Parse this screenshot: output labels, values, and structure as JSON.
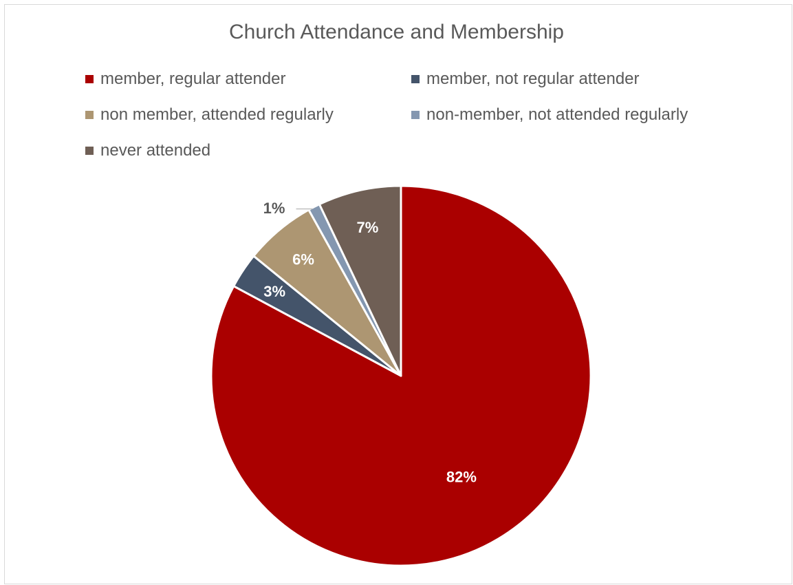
{
  "chart_data": {
    "type": "pie",
    "title": "Church Attendance and Membership",
    "categories": [
      "member, regular attender",
      "member, not regular attender",
      "non member, attended regularly",
      "non-member, not attended regularly",
      "never attended"
    ],
    "values": [
      82,
      3,
      6,
      1,
      7
    ],
    "data_labels": [
      "82%",
      "3%",
      "6%",
      "1%",
      "7%"
    ],
    "colors": [
      "#aa0000",
      "#44546a",
      "#ad9672",
      "#8497b0",
      "#6f5f55"
    ],
    "label_colors": [
      "#ffffff",
      "#ffffff",
      "#ffffff",
      "#595959",
      "#ffffff"
    ],
    "legend_position": "top"
  }
}
